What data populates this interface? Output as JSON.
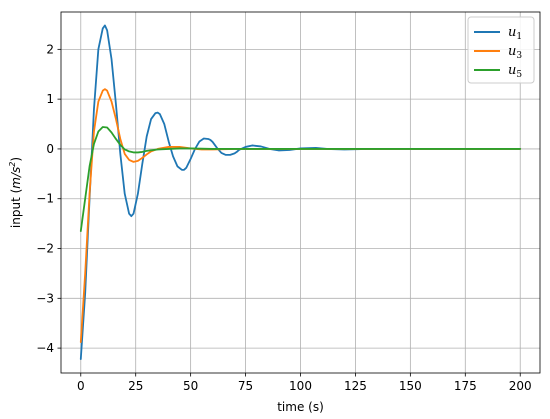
{
  "chart_data": {
    "type": "line",
    "title": "",
    "xlabel": "time (s)",
    "ylabel_parts": [
      "input (",
      "m/s",
      "2",
      ")"
    ],
    "xlim": [
      -9,
      209
    ],
    "ylim": [
      -4.5,
      2.75
    ],
    "xticks": [
      0,
      25,
      50,
      75,
      100,
      125,
      150,
      175,
      200
    ],
    "xtick_labels": [
      "0",
      "25",
      "50",
      "75",
      "100",
      "125",
      "150",
      "175",
      "200"
    ],
    "yticks": [
      -4,
      -3,
      -2,
      -1,
      0,
      1,
      2
    ],
    "ytick_labels": [
      "−4",
      "−3",
      "−2",
      "−1",
      "0",
      "1",
      "2"
    ],
    "grid": true,
    "legend_placement": "top-right",
    "series": [
      {
        "name": "u",
        "subscript": "1",
        "color": "#1f77b4",
        "x": [
          0,
          2,
          4,
          6,
          8,
          10,
          11,
          12,
          14,
          16,
          18,
          20,
          22,
          23,
          24,
          26,
          28,
          30,
          32,
          34,
          35,
          36,
          38,
          40,
          42,
          44,
          46,
          47,
          48,
          50,
          52,
          54,
          56,
          58,
          59,
          60,
          62,
          64,
          66,
          68,
          70,
          71,
          72,
          75,
          78,
          82,
          86,
          90,
          95,
          100,
          107,
          112,
          120,
          130,
          140,
          150,
          160,
          170,
          180,
          190,
          200
        ],
        "y": [
          -4.22,
          -2.9,
          -1.0,
          0.8,
          2.0,
          2.42,
          2.48,
          2.38,
          1.8,
          0.9,
          -0.1,
          -0.9,
          -1.3,
          -1.35,
          -1.3,
          -0.9,
          -0.3,
          0.25,
          0.6,
          0.72,
          0.73,
          0.7,
          0.5,
          0.15,
          -0.15,
          -0.35,
          -0.42,
          -0.42,
          -0.38,
          -0.2,
          0.0,
          0.15,
          0.21,
          0.2,
          0.18,
          0.14,
          0.02,
          -0.08,
          -0.12,
          -0.12,
          -0.09,
          -0.06,
          -0.02,
          0.04,
          0.07,
          0.05,
          0.0,
          -0.03,
          -0.02,
          0.01,
          0.02,
          0.0,
          -0.01,
          0.0,
          0.0,
          0.0,
          0.0,
          0.0,
          0.0,
          0.0,
          0.0
        ]
      },
      {
        "name": "u",
        "subscript": "3",
        "color": "#ff7f0e",
        "x": [
          0,
          2,
          4,
          6,
          8,
          10,
          11,
          12,
          14,
          16,
          18,
          20,
          22,
          24,
          26,
          28,
          30,
          32,
          35,
          40,
          45,
          50,
          55,
          60,
          70,
          80,
          90,
          100,
          120,
          150,
          200
        ],
        "y": [
          -3.88,
          -2.5,
          -0.9,
          0.35,
          0.95,
          1.17,
          1.2,
          1.17,
          0.95,
          0.6,
          0.2,
          -0.1,
          -0.22,
          -0.26,
          -0.24,
          -0.18,
          -0.11,
          -0.05,
          0.0,
          0.04,
          0.04,
          0.01,
          -0.01,
          -0.01,
          0.0,
          0.0,
          0.0,
          0.0,
          0.0,
          0.0,
          0.0
        ]
      },
      {
        "name": "u",
        "subscript": "5",
        "color": "#2ca02c",
        "x": [
          0,
          2,
          4,
          6,
          8,
          10,
          12,
          14,
          16,
          18,
          20,
          22,
          24,
          26,
          28,
          30,
          35,
          40,
          45,
          50,
          60,
          70,
          80,
          100,
          150,
          200
        ],
        "y": [
          -1.65,
          -1.0,
          -0.35,
          0.1,
          0.35,
          0.44,
          0.43,
          0.33,
          0.2,
          0.08,
          -0.01,
          -0.05,
          -0.07,
          -0.07,
          -0.06,
          -0.04,
          -0.01,
          0.0,
          0.01,
          0.01,
          0.0,
          0.0,
          0.0,
          0.0,
          0.0,
          0.0
        ]
      }
    ]
  }
}
